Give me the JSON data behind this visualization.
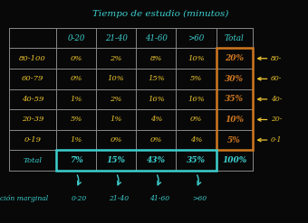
{
  "title": "Tiempo de estudio (minutos)",
  "bg_color": "#080808",
  "title_color": "#3dcfcf",
  "col_headers": [
    "0-20",
    "21-40",
    "41-60",
    ">60",
    "Total"
  ],
  "row_headers": [
    "80-100",
    "60-79",
    "40-59",
    "20-39",
    "0-19",
    "Total"
  ],
  "cell_data": [
    [
      "0%",
      "2%",
      "8%",
      "10%",
      "20%"
    ],
    [
      "0%",
      "10%",
      "15%",
      "5%",
      "30%"
    ],
    [
      "1%",
      "2%",
      "16%",
      "16%",
      "35%"
    ],
    [
      "5%",
      "1%",
      "4%",
      "0%",
      "10%"
    ],
    [
      "1%",
      "0%",
      "0%",
      "4%",
      "5%"
    ],
    [
      "7%",
      "15%",
      "43%",
      "35%",
      "100%"
    ]
  ],
  "header_color": "#3dcfcf",
  "row_header_color": "#f0c830",
  "cell_color": "#f0c830",
  "total_row_color": "#3dcfcf",
  "total_col_highlight": "#d07820",
  "total_col_border": "#d07820",
  "marginal_label": "ción marginal",
  "marginal_color": "#3dcfcf",
  "arrow_labels": [
    "0-20",
    "21-40",
    "41-60",
    ">60"
  ],
  "right_labels": [
    "80-",
    "60-",
    "40-",
    "20-",
    "0-1"
  ],
  "right_label_color": "#f0c830",
  "line_color": "#888888",
  "cyan_box_color": "#3dcfcf",
  "title_fontsize": 7.5,
  "cell_fontsize": 6.0,
  "header_fontsize": 6.2
}
